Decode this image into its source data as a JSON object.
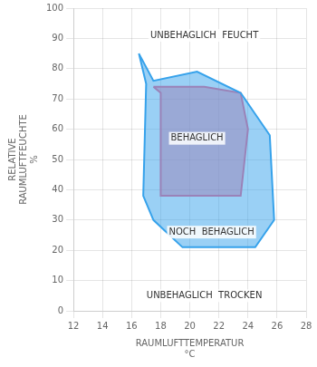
{
  "chart_data": {
    "type": "polygon",
    "x_label": "RAUMLUFTTEMPERATUR\n°C",
    "y_label": "RELATIVE\nRAUMLUFTFEUCHTE\n%",
    "xlim": [
      12,
      28
    ],
    "ylim": [
      0,
      100
    ],
    "xticks": [
      12,
      14,
      16,
      18,
      20,
      22,
      24,
      26,
      28
    ],
    "yticks": [
      0,
      10,
      20,
      30,
      40,
      50,
      60,
      70,
      80,
      90,
      100
    ],
    "grid": true,
    "series": [
      {
        "x": [
          16.5,
          17.0,
          16.8,
          17.5,
          19.5,
          24.5,
          25.8,
          25.5,
          23.5,
          20.5,
          17.5,
          16.5
        ],
        "values": [
          85,
          75,
          38,
          30,
          21,
          21,
          30,
          58,
          72,
          79,
          76,
          85
        ]
      },
      {
        "x": [
          17.5,
          18.0,
          18.0,
          19.5,
          23.5,
          24.0,
          23.5,
          21.0,
          17.5
        ],
        "values": [
          74,
          72,
          38,
          38,
          38,
          60,
          72,
          74,
          74
        ]
      }
    ],
    "annotations": [
      {
        "text": "UNBEHAGLICH  FEUCHT",
        "x": 21.0,
        "y": 91
      },
      {
        "text": "UNBEHAGLICH  TROCKEN",
        "x": 21.0,
        "y": 5
      },
      {
        "text": "NOCH  BEHAGLICH",
        "x": 21.5,
        "y": 26
      },
      {
        "text": "BEHAGLICH",
        "x": 20.5,
        "y": 57
      }
    ]
  }
}
